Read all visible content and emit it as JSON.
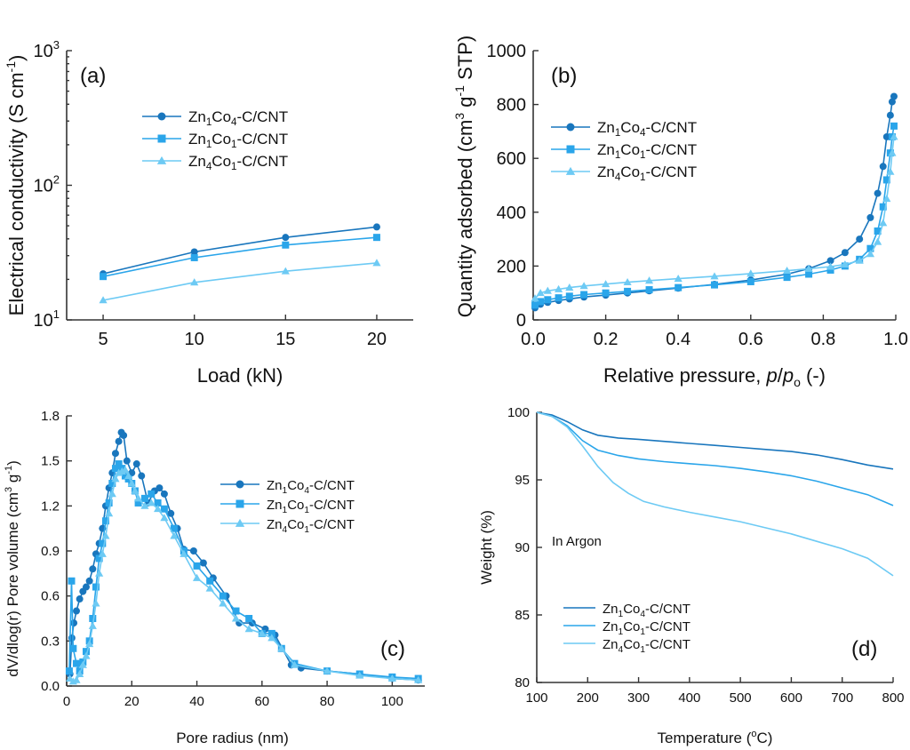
{
  "colors": {
    "dark": "#1976bd",
    "mid": "#2aa5ea",
    "light": "#6dcaf4"
  },
  "chart_data": [
    {
      "panel": "(a)",
      "type": "line",
      "xlabel": "Load (kN)",
      "ylabel": "Electrical conductivity (S cm-1)",
      "ylabel_parts": {
        "main": "Electrical conductivity (S cm",
        "sup": "-1",
        "end": ")"
      },
      "yscale": "log",
      "xlim": [
        3,
        22
      ],
      "ylim": [
        10,
        1000
      ],
      "xticks": [
        "5",
        "10",
        "15",
        "20"
      ],
      "yticks": [
        {
          "base": "10",
          "exp": "1"
        },
        {
          "base": "10",
          "exp": "2"
        },
        {
          "base": "10",
          "exp": "3"
        }
      ],
      "legend_position": "upper-left",
      "series": [
        {
          "name": "Zn1Co4-C/CNT",
          "parts": [
            "Zn",
            "1",
            "Co",
            "4",
            "-C/CNT"
          ],
          "marker": "circle",
          "color": "#1976bd",
          "x": [
            5,
            10,
            15,
            20
          ],
          "y": [
            22,
            32,
            41,
            49
          ]
        },
        {
          "name": "Zn1Co1-C/CNT",
          "parts": [
            "Zn",
            "1",
            "Co",
            "1",
            "-C/CNT"
          ],
          "marker": "square",
          "color": "#2aa5ea",
          "x": [
            5,
            10,
            15,
            20
          ],
          "y": [
            21,
            29,
            36,
            41
          ]
        },
        {
          "name": "Zn4Co1-C/CNT",
          "parts": [
            "Zn",
            "4",
            "Co",
            "1",
            "-C/CNT"
          ],
          "marker": "triangle",
          "color": "#6dcaf4",
          "x": [
            5,
            10,
            15,
            20
          ],
          "y": [
            14,
            19,
            23,
            26.5
          ]
        }
      ]
    },
    {
      "panel": "(b)",
      "type": "line",
      "xlabel": "Relative pressure, p/po (-)",
      "xlabel_parts": {
        "main": "Relative pressure, ",
        "p": "p",
        "slash": "/",
        "p2": "p",
        "sub": "o",
        "end": " (-)"
      },
      "ylabel": "Quantity adsorbed (cm3 g-1 STP)",
      "ylabel_parts": {
        "a": "Quantity adsorbed (cm",
        "s1": "3",
        "b": " g",
        "s2": "-1",
        "c": " STP)"
      },
      "xlim": [
        0.0,
        1.0
      ],
      "ylim": [
        0,
        1000
      ],
      "xticks": [
        "0.0",
        "0.2",
        "0.4",
        "0.6",
        "0.8",
        "1.0"
      ],
      "yticks": [
        "0",
        "200",
        "400",
        "600",
        "800",
        "1000"
      ],
      "legend_position": "center-left",
      "series": [
        {
          "name": "Zn1Co4-C/CNT",
          "parts": [
            "Zn",
            "1",
            "Co",
            "4",
            "-C/CNT"
          ],
          "marker": "circle",
          "color": "#1976bd",
          "x": [
            0.005,
            0.02,
            0.04,
            0.07,
            0.1,
            0.14,
            0.2,
            0.26,
            0.32,
            0.4,
            0.5,
            0.6,
            0.7,
            0.76,
            0.82,
            0.86,
            0.9,
            0.93,
            0.95,
            0.965,
            0.975,
            0.985,
            0.99,
            0.995
          ],
          "y": [
            45,
            58,
            65,
            72,
            78,
            85,
            92,
            100,
            108,
            118,
            132,
            148,
            170,
            190,
            220,
            250,
            300,
            380,
            470,
            570,
            680,
            760,
            810,
            830
          ]
        },
        {
          "name": "Zn1Co1-C/CNT",
          "parts": [
            "Zn",
            "1",
            "Co",
            "1",
            "-C/CNT"
          ],
          "marker": "square",
          "color": "#2aa5ea",
          "x": [
            0.005,
            0.02,
            0.04,
            0.07,
            0.1,
            0.14,
            0.2,
            0.26,
            0.32,
            0.4,
            0.5,
            0.6,
            0.7,
            0.76,
            0.82,
            0.86,
            0.9,
            0.93,
            0.95,
            0.965,
            0.975,
            0.985,
            0.99,
            0.995
          ],
          "y": [
            55,
            68,
            75,
            82,
            88,
            94,
            100,
            106,
            112,
            120,
            130,
            142,
            158,
            170,
            185,
            200,
            225,
            265,
            330,
            420,
            520,
            620,
            680,
            720
          ]
        },
        {
          "name": "Zn4Co1-C/CNT",
          "parts": [
            "Zn",
            "4",
            "Co",
            "1",
            "-C/CNT"
          ],
          "marker": "triangle",
          "color": "#6dcaf4",
          "x": [
            0.005,
            0.02,
            0.04,
            0.07,
            0.1,
            0.14,
            0.2,
            0.26,
            0.32,
            0.4,
            0.5,
            0.6,
            0.7,
            0.76,
            0.82,
            0.86,
            0.9,
            0.93,
            0.95,
            0.965,
            0.975,
            0.985,
            0.99,
            0.995
          ],
          "y": [
            80,
            100,
            108,
            114,
            120,
            126,
            133,
            140,
            146,
            153,
            162,
            172,
            183,
            190,
            198,
            206,
            220,
            245,
            290,
            360,
            450,
            550,
            620,
            680
          ]
        }
      ]
    },
    {
      "panel": "(c)",
      "type": "line",
      "xlabel": "Pore radius (nm)",
      "ylabel": "dV/dlog(r) Pore volume (cm3 g-1)",
      "ylabel_parts": {
        "a": "dV/dlog(r) Pore volume (cm",
        "s1": "3",
        "b": " g",
        "s2": "-1",
        "c": ")"
      },
      "xlim": [
        0,
        110
      ],
      "ylim": [
        0,
        1.8
      ],
      "xticks": [
        "0",
        "20",
        "40",
        "60",
        "80",
        "100"
      ],
      "yticks": [
        "0.0",
        "0.3",
        "0.6",
        "0.9",
        "1.2",
        "1.5",
        "1.8"
      ],
      "legend_position": "right",
      "series": [
        {
          "name": "Zn1Co4-C/CNT",
          "parts": [
            "Zn",
            "1",
            "Co",
            "4",
            "-C/CNT"
          ],
          "marker": "circle",
          "color": "#1976bd",
          "x": [
            1,
            1.6,
            2.2,
            3,
            4,
            5,
            6,
            7,
            8,
            9,
            10,
            11,
            12,
            13,
            14,
            15,
            16,
            16.8,
            17.5,
            18.5,
            20,
            21.5,
            23,
            25,
            27,
            28.5,
            30,
            32,
            34,
            36,
            39,
            42,
            45,
            49,
            53,
            57,
            61,
            64,
            69,
            72,
            80,
            90,
            100,
            108
          ],
          "y": [
            0.08,
            0.32,
            0.42,
            0.5,
            0.58,
            0.63,
            0.66,
            0.7,
            0.78,
            0.88,
            0.95,
            1.05,
            1.2,
            1.32,
            1.42,
            1.55,
            1.63,
            1.69,
            1.67,
            1.5,
            1.42,
            1.48,
            1.4,
            1.22,
            1.3,
            1.32,
            1.28,
            1.15,
            1.05,
            0.91,
            0.9,
            0.82,
            0.72,
            0.6,
            0.42,
            0.42,
            0.38,
            0.34,
            0.14,
            0.12,
            0.1,
            0.08,
            0.05,
            0.04
          ]
        },
        {
          "name": "Zn1Co1-C/CNT",
          "parts": [
            "Zn",
            "1",
            "Co",
            "1",
            "-C/CNT"
          ],
          "marker": "square",
          "color": "#2aa5ea",
          "x": [
            0.8,
            1.5,
            2,
            3,
            4,
            5,
            6,
            7,
            8,
            9,
            10,
            11,
            12,
            13,
            14,
            15,
            16,
            17,
            18,
            19,
            20,
            21,
            22,
            24,
            26,
            28,
            30,
            33,
            36,
            40,
            44,
            48,
            52,
            56,
            60,
            63,
            66,
            70,
            80,
            90,
            100,
            108
          ],
          "y": [
            0.1,
            0.7,
            0.25,
            0.15,
            0.1,
            0.16,
            0.23,
            0.3,
            0.45,
            0.66,
            0.85,
            0.95,
            1.1,
            1.22,
            1.35,
            1.45,
            1.48,
            1.45,
            1.4,
            1.38,
            1.35,
            1.3,
            1.22,
            1.25,
            1.28,
            1.22,
            1.18,
            1.05,
            0.9,
            0.8,
            0.7,
            0.6,
            0.5,
            0.45,
            0.35,
            0.35,
            0.25,
            0.15,
            0.1,
            0.08,
            0.06,
            0.05
          ]
        },
        {
          "name": "Zn4Co1-C/CNT",
          "parts": [
            "Zn",
            "4",
            "Co",
            "1",
            "-C/CNT"
          ],
          "marker": "triangle",
          "color": "#6dcaf4",
          "x": [
            1,
            2,
            3,
            4,
            5,
            6,
            7,
            8,
            9,
            10,
            11,
            12,
            13,
            14,
            15,
            16,
            17,
            18,
            19,
            20,
            21,
            22,
            24,
            26,
            28,
            30,
            33,
            36,
            40,
            44,
            48,
            52,
            56,
            60,
            63,
            66,
            70,
            80,
            90,
            100,
            108
          ],
          "y": [
            0.05,
            0.03,
            0.04,
            0.08,
            0.14,
            0.2,
            0.28,
            0.4,
            0.55,
            0.75,
            0.88,
            1.0,
            1.15,
            1.28,
            1.38,
            1.42,
            1.43,
            1.44,
            1.4,
            1.35,
            1.3,
            1.25,
            1.2,
            1.22,
            1.18,
            1.12,
            1.0,
            0.88,
            0.72,
            0.65,
            0.55,
            0.45,
            0.38,
            0.35,
            0.32,
            0.25,
            0.14,
            0.1,
            0.07,
            0.05,
            0.04
          ]
        }
      ]
    },
    {
      "panel": "(d)",
      "type": "line",
      "xlabel": "Temperature (oC)",
      "xlabel_parts": {
        "a": "Temperature (",
        "sup": "o",
        "b": "C)"
      },
      "ylabel": "Weight (%)",
      "xlim": [
        100,
        800
      ],
      "ylim": [
        80,
        100
      ],
      "xticks": [
        "100",
        "200",
        "300",
        "400",
        "500",
        "600",
        "700",
        "800"
      ],
      "yticks": [
        "80",
        "85",
        "90",
        "95",
        "100"
      ],
      "annotation": "In Argon",
      "legend_position": "lower-left",
      "series": [
        {
          "name": "Zn1Co4-C/CNT",
          "parts": [
            "Zn",
            "1",
            "Co",
            "4",
            "-C/CNT"
          ],
          "marker": "none",
          "color": "#1976bd",
          "x": [
            100,
            130,
            160,
            190,
            220,
            260,
            300,
            350,
            400,
            450,
            500,
            550,
            600,
            650,
            700,
            750,
            800
          ],
          "y": [
            100,
            99.8,
            99.3,
            98.7,
            98.3,
            98.1,
            98.0,
            97.85,
            97.7,
            97.55,
            97.4,
            97.25,
            97.1,
            96.85,
            96.5,
            96.1,
            95.8
          ]
        },
        {
          "name": "Zn1Co1-C/CNT",
          "parts": [
            "Zn",
            "1",
            "Co",
            "1",
            "-C/CNT"
          ],
          "marker": "none",
          "color": "#2aa5ea",
          "x": [
            100,
            130,
            160,
            190,
            220,
            260,
            300,
            350,
            400,
            450,
            500,
            550,
            600,
            650,
            700,
            750,
            800
          ],
          "y": [
            100,
            99.7,
            99.0,
            97.9,
            97.2,
            96.8,
            96.55,
            96.35,
            96.2,
            96.05,
            95.85,
            95.6,
            95.3,
            94.9,
            94.4,
            93.9,
            93.1
          ]
        },
        {
          "name": "Zn4Co1-C/CNT",
          "parts": [
            "Zn",
            "4",
            "Co",
            "1",
            "-C/CNT"
          ],
          "marker": "none",
          "color": "#6dcaf4",
          "x": [
            100,
            130,
            160,
            190,
            220,
            250,
            280,
            310,
            350,
            400,
            450,
            500,
            550,
            600,
            650,
            700,
            750,
            800
          ],
          "y": [
            100,
            99.7,
            98.9,
            97.5,
            96.0,
            94.8,
            94.0,
            93.4,
            93.0,
            92.6,
            92.25,
            91.9,
            91.45,
            91.0,
            90.45,
            89.9,
            89.2,
            87.9
          ]
        }
      ]
    }
  ]
}
